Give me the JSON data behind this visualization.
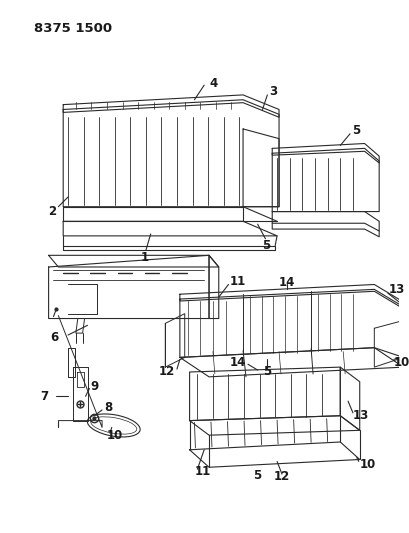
{
  "title": "8375 1500",
  "bg_color": "#ffffff",
  "line_color": "#2a2a2a",
  "label_color": "#1a1a1a",
  "title_fontsize": 9.5,
  "label_fontsize": 8.5,
  "figsize": [
    4.1,
    5.33
  ],
  "dpi": 100
}
